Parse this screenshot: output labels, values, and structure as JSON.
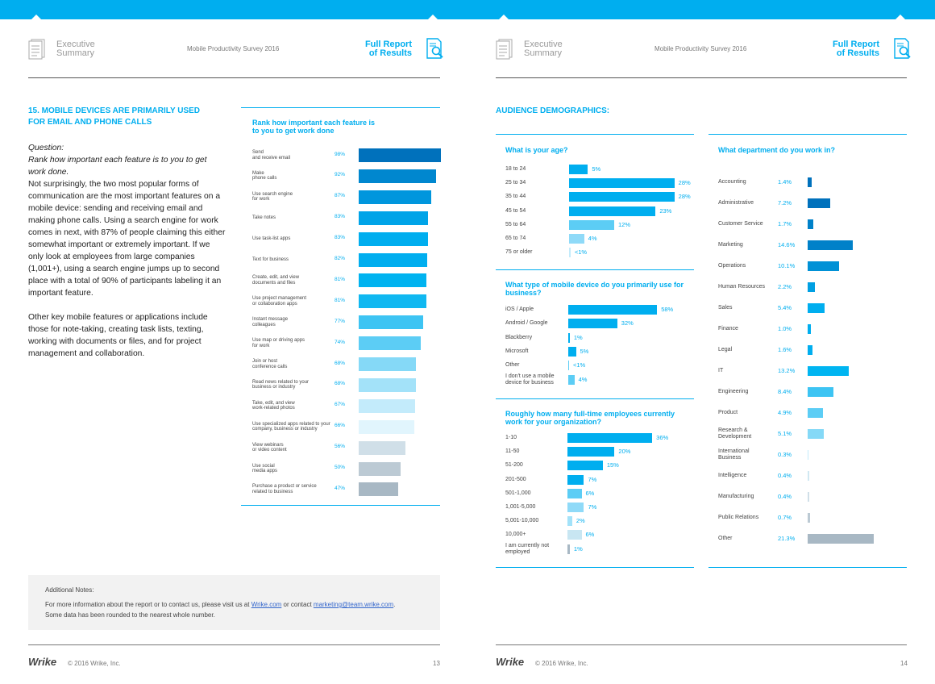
{
  "colors": {
    "accent": "#00aeef",
    "dark_blue": "#0071bc",
    "grey_bar": "#a8b8c4"
  },
  "left": {
    "header": {
      "exec_line1": "Executive",
      "exec_line2": "Summary",
      "survey": "Mobile Productivity Survey 2016",
      "report_line1": "Full Report",
      "report_line2": "of Results"
    },
    "section_title_1": "15. MOBILE DEVICES ARE PRIMARILY USED",
    "section_title_2": "FOR EMAIL AND PHONE CALLS",
    "question_label": "Question:",
    "question_text": "Rank how important each feature is to you to get work done.",
    "paragraph1": "Not surprisingly, the two most popular forms of communication are the most important features on a mobile device: sending and receiving email and making phone calls. Using a search engine for work comes in next, with 87% of people claiming this either somewhat important or extremely important. If we only look at employees from large companies (1,001+), using a search engine jumps up to second place with a total of 90% of participants labeling it an important feature.",
    "paragraph2": "Other key mobile features or applications include those for note-taking, creating task lists, texting, working with documents or files, and for project management and collaboration.",
    "footer": {
      "logo": "Wrike",
      "copyright": "© 2016 Wrike, Inc.",
      "page": "13"
    }
  },
  "notes": {
    "title": "Additional Notes:",
    "line1_pre": "For more information about the report or to contact us, please visit us at ",
    "link1": "Wrike.com",
    "line1_mid": " or contact ",
    "link2": "marketing@team.wrike.com",
    "line1_post": ".",
    "line2": "Some data has been rounded to the nearest whole number."
  },
  "right": {
    "header": {
      "exec_line1": "Executive",
      "exec_line2": "Summary",
      "survey": "Mobile Productivity Survey 2016",
      "report_line1": "Full Report",
      "report_line2": "of Results"
    },
    "section_title": "AUDIENCE DEMOGRAPHICS:",
    "footer": {
      "logo": "Wrike",
      "copyright": "© 2016 Wrike, Inc.",
      "page": "14"
    }
  },
  "chart_data": [
    {
      "type": "bar",
      "orientation": "horizontal",
      "title": "Rank how important each feature is to you to get work done",
      "xlim": [
        0,
        100
      ],
      "rows": [
        {
          "label": "Send\nand receive email",
          "pct": "98%",
          "value": 98,
          "color": "#0071bc"
        },
        {
          "label": "Make\nphone calls",
          "pct": "92%",
          "value": 92,
          "color": "#0087cf"
        },
        {
          "label": "Use search engine\nfor work",
          "pct": "87%",
          "value": 87,
          "color": "#0096dd"
        },
        {
          "label": "Take notes",
          "pct": "83%",
          "value": 83,
          "color": "#00a4e8"
        },
        {
          "label": "Use task-list apps",
          "pct": "83%",
          "value": 83,
          "color": "#00aeef"
        },
        {
          "label": "Text for business",
          "pct": "82%",
          "value": 82,
          "color": "#00aeef"
        },
        {
          "label": "Create, edit, and view\ndocuments and files",
          "pct": "81%",
          "value": 81,
          "color": "#00b3f0"
        },
        {
          "label": "Use project management\nor collaboration apps",
          "pct": "81%",
          "value": 81,
          "color": "#10b8f1"
        },
        {
          "label": "Instant message\ncolleagues",
          "pct": "77%",
          "value": 77,
          "color": "#3dc4f3"
        },
        {
          "label": "Use map or driving apps\nfor work",
          "pct": "74%",
          "value": 74,
          "color": "#5ccdf5"
        },
        {
          "label": "Join or host\nconference calls",
          "pct": "68%",
          "value": 68,
          "color": "#85d9f7"
        },
        {
          "label": "Read news related to your\nbusiness or industry",
          "pct": "68%",
          "value": 68,
          "color": "#a3e2f9"
        },
        {
          "label": "Take, edit, and view\nwork-related photos",
          "pct": "67%",
          "value": 67,
          "color": "#c3ebfb"
        },
        {
          "label": "Use specialized apps related to your\ncompany, business or industry",
          "pct": "66%",
          "value": 66,
          "color": "#e1f5fd"
        },
        {
          "label": "View webinars\nor video content",
          "pct": "56%",
          "value": 56,
          "color": "#d0dfe8"
        },
        {
          "label": "Use social\nmedia apps",
          "pct": "50%",
          "value": 50,
          "color": "#bccad4"
        },
        {
          "label": "Purchase a product or service\nrelated to business",
          "pct": "47%",
          "value": 47,
          "color": "#a8b8c4"
        }
      ]
    },
    {
      "type": "bar",
      "orientation": "horizontal",
      "title": "What is your age?",
      "xlim": [
        0,
        30
      ],
      "rows": [
        {
          "label": "18 to 24",
          "pct": "5%",
          "value": 5,
          "color": "#00aeef"
        },
        {
          "label": "25 to 34",
          "pct": "28%",
          "value": 28,
          "color": "#00aeef"
        },
        {
          "label": "35 to 44",
          "pct": "28%",
          "value": 28,
          "color": "#00aeef"
        },
        {
          "label": "45 to 54",
          "pct": "23%",
          "value": 23,
          "color": "#00aeef"
        },
        {
          "label": "55 to 64",
          "pct": "12%",
          "value": 12,
          "color": "#5ccdf5"
        },
        {
          "label": "65 to 74",
          "pct": "4%",
          "value": 4,
          "color": "#8fdaf8"
        },
        {
          "label": "75 or older",
          "pct": "<1%",
          "value": 0.4,
          "color": "#c3ebfb"
        }
      ]
    },
    {
      "type": "bar",
      "orientation": "horizontal",
      "title": "What type of mobile device do you primarily use for business?",
      "xlim": [
        0,
        60
      ],
      "rows": [
        {
          "label": "iOS / Apple",
          "pct": "58%",
          "value": 58,
          "color": "#00aeef"
        },
        {
          "label": "Android / Google",
          "pct": "32%",
          "value": 32,
          "color": "#00aeef"
        },
        {
          "label": "Blackberry",
          "pct": "1%",
          "value": 1,
          "color": "#00aeef"
        },
        {
          "label": "Microsoft",
          "pct": "5%",
          "value": 5,
          "color": "#00aeef"
        },
        {
          "label": "Other",
          "pct": "<1%",
          "value": 0.4,
          "color": "#5ccdf5"
        },
        {
          "label": "I don't use a mobile\ndevice for business",
          "pct": "4%",
          "value": 4,
          "color": "#5ccdf5"
        }
      ]
    },
    {
      "type": "bar",
      "orientation": "horizontal",
      "title": "Roughly how many full-time employees currently work for your organization?",
      "xlim": [
        0,
        38
      ],
      "rows": [
        {
          "label": "1-10",
          "pct": "36%",
          "value": 36,
          "color": "#00aeef"
        },
        {
          "label": "11-50",
          "pct": "20%",
          "value": 20,
          "color": "#00aeef"
        },
        {
          "label": "51-200",
          "pct": "15%",
          "value": 15,
          "color": "#00aeef"
        },
        {
          "label": "201-500",
          "pct": "7%",
          "value": 7,
          "color": "#00aeef"
        },
        {
          "label": "501-1,000",
          "pct": "6%",
          "value": 6,
          "color": "#5ccdf5"
        },
        {
          "label": "1,001-5,000",
          "pct": "7%",
          "value": 7,
          "color": "#8fdaf8"
        },
        {
          "label": "5,001-10,000",
          "pct": "2%",
          "value": 2,
          "color": "#a3e2f9"
        },
        {
          "label": "10,000+",
          "pct": "6%",
          "value": 6,
          "color": "#c8e6f2"
        },
        {
          "label": "I am currently not\nemployed",
          "pct": "1%",
          "value": 1,
          "color": "#a8b8c4"
        }
      ]
    },
    {
      "type": "bar",
      "orientation": "horizontal",
      "title": "What department do you work in?",
      "xlim": [
        0,
        22
      ],
      "rows": [
        {
          "label": "Accounting",
          "pct": "1.4%",
          "value": 1.4,
          "color": "#0071bc"
        },
        {
          "label": "Administrative",
          "pct": "7.2%",
          "value": 7.2,
          "color": "#0071bc"
        },
        {
          "label": "Customer Service",
          "pct": "1.7%",
          "value": 1.7,
          "color": "#0081c9"
        },
        {
          "label": "Marketing",
          "pct": "14.6%",
          "value": 14.6,
          "color": "#0081c9"
        },
        {
          "label": "Operations",
          "pct": "10.1%",
          "value": 10.1,
          "color": "#0091d6"
        },
        {
          "label": "Human Resources",
          "pct": "2.2%",
          "value": 2.2,
          "color": "#00a0e3"
        },
        {
          "label": "Sales",
          "pct": "5.4%",
          "value": 5.4,
          "color": "#00aeef"
        },
        {
          "label": "Finance",
          "pct": "1.0%",
          "value": 1.0,
          "color": "#00aeef"
        },
        {
          "label": "Legal",
          "pct": "1.6%",
          "value": 1.6,
          "color": "#00aeef"
        },
        {
          "label": "IT",
          "pct": "13.2%",
          "value": 13.2,
          "color": "#00b5f1"
        },
        {
          "label": "Engineering",
          "pct": "8.4%",
          "value": 8.4,
          "color": "#3dc4f3"
        },
        {
          "label": "Product",
          "pct": "4.9%",
          "value": 4.9,
          "color": "#5ccdf5"
        },
        {
          "label": "Research &\nDevelopment",
          "pct": "5.1%",
          "value": 5.1,
          "color": "#85d9f7"
        },
        {
          "label": "International\nBusiness",
          "pct": "0.3%",
          "value": 0.3,
          "color": "#c3ebfb"
        },
        {
          "label": "Intelligence",
          "pct": "0.4%",
          "value": 0.4,
          "color": "#d0e8f2"
        },
        {
          "label": "Manufacturing",
          "pct": "0.4%",
          "value": 0.4,
          "color": "#d0dfe8"
        },
        {
          "label": "Public Relations",
          "pct": "0.7%",
          "value": 0.7,
          "color": "#bccad4"
        },
        {
          "label": "Other",
          "pct": "21.3%",
          "value": 21.3,
          "color": "#a8b8c4"
        }
      ]
    }
  ]
}
